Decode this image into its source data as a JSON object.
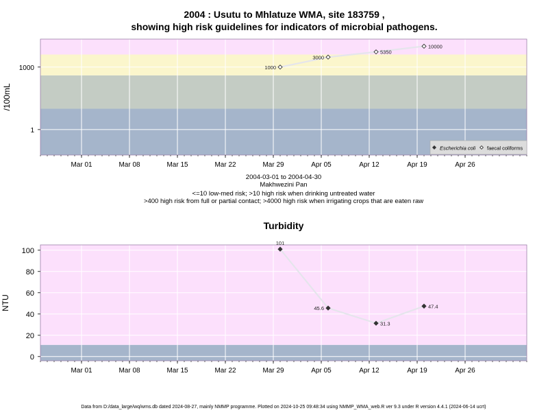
{
  "title_line1": "2004 : Usutu to Mhlatuze WMA, site 183759 ,",
  "title_line2": "showing high risk guidelines for indicators of microbial pathogens.",
  "footer": "Data from D:/data_large/wq/wms.db dated 2024-08-27, mainly NMMP programme. Plotted on 2024-10-25 09:48:34 using NMMP_WMA_web.R ver 9.3 under R version 4.4.1 (2024-06-14 ucrt)",
  "colors": {
    "pink": "#FCE0FC",
    "yellow": "#FBF6CC",
    "gray_green": "#C4CCC4",
    "blue_gray": "#A5B5CB",
    "grid": "#ffffff",
    "line": "#E5E5EC",
    "axis": "#7F7F7F",
    "panel_border": "#9B7FA9"
  },
  "chart_data": [
    {
      "type": "line",
      "title": "",
      "ylabel": "/100mL",
      "yscale": "log",
      "ylim": [
        0.06,
        22000
      ],
      "xlim": [
        "2004-02-24",
        "2004-05-05"
      ],
      "x_ticks": [
        "Mar 01",
        "Mar 08",
        "Mar 15",
        "Mar 22",
        "Mar 29",
        "Apr 05",
        "Apr 12",
        "Apr 19",
        "Apr 26"
      ],
      "y_ticks": [
        "1",
        "1000"
      ],
      "bands": [
        {
          "from": 0.06,
          "to": 10,
          "color": "blue_gray"
        },
        {
          "from": 10,
          "to": 400,
          "color": "gray_green"
        },
        {
          "from": 400,
          "to": 4000,
          "color": "yellow"
        },
        {
          "from": 4000,
          "to": 22000,
          "color": "pink"
        }
      ],
      "series": [
        {
          "name": "Escherichia coli",
          "marker": "filled-diamond",
          "x": [],
          "y": [],
          "labels": []
        },
        {
          "name": "faecal coliforms",
          "marker": "open-diamond",
          "x": [
            "2004-03-30",
            "2004-04-06",
            "2004-04-13",
            "2004-04-20"
          ],
          "y": [
            1000,
            3000,
            5350,
            10000
          ],
          "labels": [
            "1000",
            "3000",
            "5350",
            "10000"
          ]
        }
      ],
      "legend_position": "bottom-right",
      "caption": [
        "2004-03-01 to 2004-04-30",
        "Makhwezini Pan",
        "<=10 low-med risk; >10 high risk when drinking untreated water",
        ">400 high risk from full or partial contact; >4000 high risk when irrigating crops that are eaten raw"
      ]
    },
    {
      "type": "line",
      "title": "Turbidity",
      "ylabel": "NTU",
      "ylim": [
        -4,
        105
      ],
      "xlim": [
        "2004-02-24",
        "2004-05-05"
      ],
      "x_ticks": [
        "Mar 01",
        "Mar 08",
        "Mar 15",
        "Mar 22",
        "Mar 29",
        "Apr 05",
        "Apr 12",
        "Apr 19",
        "Apr 26"
      ],
      "y_ticks": [
        0,
        20,
        40,
        60,
        80,
        100
      ],
      "bands": [
        {
          "from": -4,
          "to": 11,
          "color": "blue_gray"
        },
        {
          "from": 11,
          "to": 105,
          "color": "pink"
        }
      ],
      "series": [
        {
          "name": "",
          "marker": "filled-diamond",
          "x": [
            "2004-03-30",
            "2004-04-06",
            "2004-04-13",
            "2004-04-20"
          ],
          "y": [
            101,
            45.6,
            31.3,
            47.4
          ],
          "labels": [
            "101",
            "45.6",
            "31.3",
            "47.4"
          ]
        }
      ]
    }
  ]
}
